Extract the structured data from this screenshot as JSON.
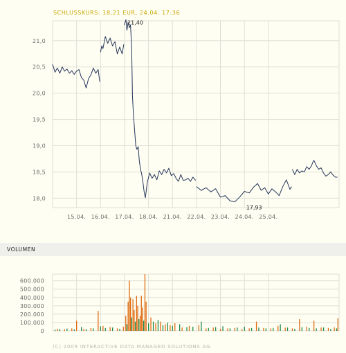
{
  "header": {
    "closing_label": "SCHLUSSKURS: 18,21 EUR, 24.04. 17:36"
  },
  "volume_title": "VOLUMEN",
  "copyright": "(C) 2009 INTERACTIVE DATA MANAGED SOLUTIONS AG",
  "colors": {
    "price_line": "#23345a",
    "grid": "#dfdfd6",
    "vol_green": "#1f8a4a",
    "vol_orange": "#e06a10"
  },
  "chart_data": [
    {
      "type": "line",
      "ylim": [
        17.82,
        21.38
      ],
      "yticks": [
        18.0,
        18.5,
        19.0,
        19.5,
        20.0,
        20.5,
        21.0
      ],
      "ytick_labels": [
        "18,0",
        "18,5",
        "19,0",
        "19,5",
        "20,0",
        "20,5",
        "21,0"
      ],
      "xticks": [
        "15.04.",
        "16.04.",
        "17.04.",
        "18.04.",
        "21.04.",
        "22.04.",
        "23.04.",
        "24.04.",
        "25.04."
      ],
      "annotations": [
        {
          "label": "21,40",
          "x": 17.06,
          "y": 21.4
        },
        {
          "label": "17,93",
          "x": 22.42,
          "y": 17.93
        }
      ],
      "series": [
        {
          "segment": 1,
          "x": [
            14.0,
            14.1,
            14.2,
            14.3,
            14.4,
            14.5,
            14.6,
            14.7,
            14.8,
            14.9,
            15.0,
            15.1,
            15.2,
            15.3,
            15.4,
            15.5,
            15.6,
            15.7,
            15.8,
            15.9,
            15.97
          ],
          "y": [
            20.55,
            20.4,
            20.48,
            20.38,
            20.5,
            20.42,
            20.46,
            20.38,
            20.43,
            20.36,
            20.42,
            20.45,
            20.3,
            20.25,
            20.1,
            20.28,
            20.35,
            20.48,
            20.38,
            20.45,
            20.22
          ]
        },
        {
          "segment": 2,
          "x": [
            16.0,
            16.05,
            16.1,
            16.2,
            16.3,
            16.4,
            16.5,
            16.6,
            16.7,
            16.8,
            16.9,
            16.97
          ],
          "y": [
            20.78,
            20.9,
            20.85,
            21.08,
            20.95,
            21.05,
            20.9,
            20.98,
            20.75,
            20.88,
            20.75,
            20.93
          ]
        },
        {
          "segment": 3,
          "x": [
            16.99,
            17.06,
            17.1,
            17.15,
            17.2,
            17.25,
            17.3,
            17.33,
            17.37,
            17.42,
            17.47,
            17.52,
            17.57,
            17.62,
            17.67,
            17.72,
            17.77,
            17.82,
            17.87,
            17.95,
            18.05,
            18.15,
            18.25,
            18.35,
            18.45,
            18.55,
            18.65,
            18.75,
            18.85,
            18.95,
            19.05,
            19.15,
            19.25,
            19.35,
            19.45,
            19.55,
            19.65,
            19.75,
            19.85,
            19.97
          ],
          "y": [
            21.3,
            21.4,
            21.2,
            21.35,
            21.25,
            21.3,
            20.85,
            19.95,
            19.6,
            19.3,
            19.0,
            18.93,
            18.98,
            18.7,
            18.55,
            18.45,
            18.3,
            18.12,
            18.01,
            18.3,
            18.48,
            18.38,
            18.45,
            18.35,
            18.52,
            18.45,
            18.55,
            18.48,
            18.57,
            18.43,
            18.47,
            18.38,
            18.32,
            18.45,
            18.34,
            18.35,
            18.38,
            18.32,
            18.4,
            18.34
          ]
        },
        {
          "segment": 4,
          "x": [
            20.0,
            20.2,
            20.4,
            20.6,
            20.8,
            21.0,
            21.2,
            21.4,
            21.6,
            21.8,
            22.0,
            22.2,
            22.4,
            22.55,
            22.7,
            22.85,
            23.0,
            23.15,
            23.3,
            23.45,
            23.6,
            23.75,
            23.9,
            23.97
          ],
          "y": [
            18.22,
            18.15,
            18.2,
            18.12,
            18.18,
            18.02,
            18.05,
            17.95,
            17.93,
            18.02,
            18.13,
            18.1,
            18.22,
            18.28,
            18.15,
            18.2,
            18.08,
            18.18,
            18.12,
            18.05,
            18.22,
            18.35,
            18.17,
            18.22
          ]
        },
        {
          "segment": 5,
          "x": [
            24.0,
            24.1,
            24.2,
            24.3,
            24.4,
            24.5,
            24.6,
            24.7,
            24.8,
            24.85,
            24.9,
            25.0,
            25.1,
            25.2,
            25.3,
            25.4,
            25.5,
            25.6,
            25.7,
            25.8,
            25.88
          ],
          "y": [
            18.55,
            18.45,
            18.55,
            18.48,
            18.52,
            18.5,
            18.6,
            18.55,
            18.62,
            18.68,
            18.72,
            18.62,
            18.55,
            18.58,
            18.48,
            18.42,
            18.45,
            18.5,
            18.44,
            18.4,
            18.4
          ]
        }
      ]
    },
    {
      "type": "bar",
      "title": "VOLUMEN",
      "ylim": [
        0,
        680000
      ],
      "yticks": [
        0,
        100000,
        200000,
        300000,
        400000,
        500000,
        600000
      ],
      "ytick_labels": [
        "0",
        "100.000",
        "200.000",
        "300.000",
        "400.000",
        "500.000",
        "600.000"
      ],
      "xlim": [
        14.0,
        25.95
      ],
      "series": [
        {
          "name": "green",
          "x": [
            14.1,
            14.3,
            14.6,
            14.9,
            15.2,
            15.4,
            15.7,
            16.0,
            16.2,
            16.5,
            16.8,
            17.1,
            17.3,
            17.45,
            17.6,
            17.8,
            18.0,
            18.2,
            18.4,
            18.6,
            18.8,
            19.0,
            19.3,
            19.6,
            19.85,
            20.2,
            20.5,
            20.8,
            21.1,
            21.4,
            21.7,
            22.0,
            22.3,
            22.6,
            22.9,
            23.2,
            23.5,
            23.8,
            24.1,
            24.4,
            24.7,
            25.0,
            25.3,
            25.6,
            25.85
          ],
          "values": [
            15000,
            22000,
            28000,
            18000,
            45000,
            20000,
            30000,
            55000,
            35000,
            40000,
            25000,
            80000,
            160000,
            110000,
            140000,
            120000,
            90000,
            110000,
            130000,
            70000,
            95000,
            60000,
            80000,
            45000,
            50000,
            110000,
            35000,
            45000,
            55000,
            30000,
            40000,
            50000,
            35000,
            40000,
            30000,
            35000,
            80000,
            40000,
            25000,
            45000,
            35000,
            30000,
            40000,
            25000,
            30000
          ]
        },
        {
          "name": "orange",
          "x": [
            14.2,
            14.5,
            14.8,
            15.0,
            15.3,
            15.6,
            15.9,
            16.1,
            16.4,
            16.7,
            16.95,
            17.05,
            17.15,
            17.2,
            17.25,
            17.35,
            17.4,
            17.5,
            17.55,
            17.65,
            17.7,
            17.75,
            17.85,
            17.9,
            18.1,
            18.3,
            18.5,
            18.7,
            18.9,
            19.1,
            19.4,
            19.7,
            20.1,
            20.4,
            20.7,
            21.0,
            21.3,
            21.6,
            21.9,
            22.2,
            22.5,
            22.8,
            23.1,
            23.4,
            23.7,
            24.0,
            24.3,
            24.6,
            24.9,
            25.2,
            25.5,
            25.75,
            25.9
          ],
          "values": [
            25000,
            18000,
            30000,
            120000,
            22000,
            35000,
            240000,
            60000,
            45000,
            30000,
            50000,
            180000,
            350000,
            600000,
            400000,
            380000,
            250000,
            420000,
            300000,
            180000,
            420000,
            280000,
            680000,
            350000,
            160000,
            90000,
            110000,
            80000,
            70000,
            90000,
            40000,
            60000,
            70000,
            30000,
            40000,
            25000,
            30000,
            35000,
            20000,
            30000,
            110000,
            35000,
            30000,
            60000,
            40000,
            30000,
            140000,
            50000,
            120000,
            40000,
            35000,
            40000,
            150000
          ]
        }
      ]
    }
  ]
}
